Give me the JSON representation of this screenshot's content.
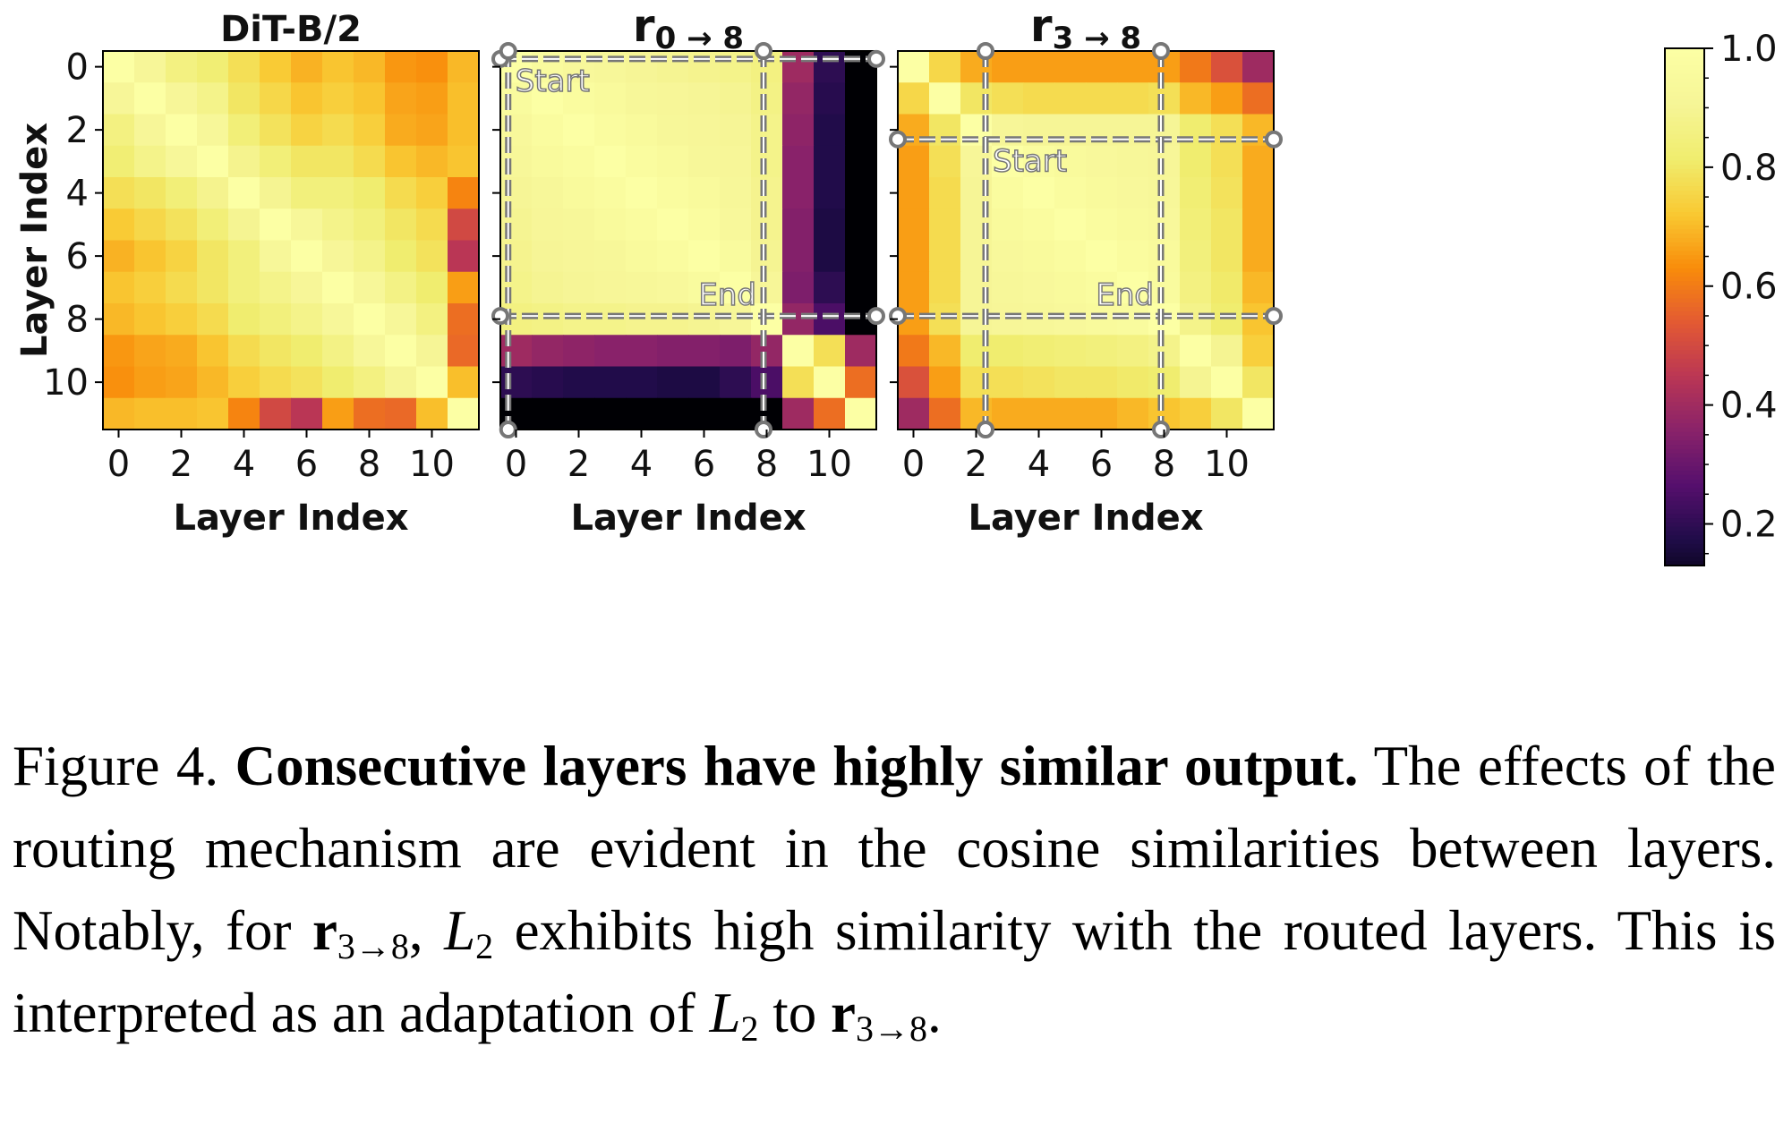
{
  "chart_data": [
    {
      "type": "heatmap",
      "title": "DiT-B/2",
      "title_main": "DiT-B/2",
      "title_sub": "",
      "xlabel": "Layer Index",
      "ylabel": "Layer Index",
      "x_ticks": [
        "0",
        "2",
        "4",
        "6",
        "8",
        "10"
      ],
      "y_ticks": [
        "0",
        "2",
        "4",
        "6",
        "8",
        "10"
      ],
      "size": 12,
      "route_from": null,
      "route_to": null,
      "start_label": "",
      "end_label": "",
      "values": [
        [
          1.0,
          0.92,
          0.86,
          0.83,
          0.78,
          0.73,
          0.69,
          0.72,
          0.7,
          0.65,
          0.64,
          0.7
        ],
        [
          0.92,
          1.0,
          0.92,
          0.88,
          0.8,
          0.76,
          0.72,
          0.74,
          0.72,
          0.67,
          0.66,
          0.71
        ],
        [
          0.86,
          0.92,
          1.0,
          0.93,
          0.84,
          0.79,
          0.75,
          0.77,
          0.74,
          0.68,
          0.67,
          0.71
        ],
        [
          0.83,
          0.88,
          0.93,
          1.0,
          0.89,
          0.84,
          0.8,
          0.8,
          0.77,
          0.72,
          0.7,
          0.72
        ],
        [
          0.78,
          0.8,
          0.84,
          0.89,
          1.0,
          0.9,
          0.85,
          0.85,
          0.82,
          0.77,
          0.74,
          0.62
        ],
        [
          0.73,
          0.76,
          0.79,
          0.84,
          0.9,
          1.0,
          0.93,
          0.88,
          0.85,
          0.8,
          0.77,
          0.5
        ],
        [
          0.69,
          0.72,
          0.75,
          0.8,
          0.85,
          0.93,
          1.0,
          0.92,
          0.88,
          0.82,
          0.79,
          0.45
        ],
        [
          0.72,
          0.74,
          0.77,
          0.8,
          0.85,
          0.88,
          0.92,
          1.0,
          0.93,
          0.87,
          0.82,
          0.66
        ],
        [
          0.7,
          0.72,
          0.74,
          0.77,
          0.82,
          0.85,
          0.88,
          0.93,
          1.0,
          0.93,
          0.86,
          0.58
        ],
        [
          0.65,
          0.67,
          0.68,
          0.72,
          0.77,
          0.8,
          0.82,
          0.87,
          0.93,
          1.0,
          0.91,
          0.57
        ],
        [
          0.64,
          0.66,
          0.67,
          0.7,
          0.74,
          0.77,
          0.79,
          0.82,
          0.86,
          0.91,
          1.0,
          0.71
        ],
        [
          0.7,
          0.71,
          0.71,
          0.72,
          0.62,
          0.5,
          0.45,
          0.66,
          0.58,
          0.57,
          0.71,
          1.0
        ]
      ]
    },
    {
      "type": "heatmap",
      "title": "r0→8",
      "title_main": "r",
      "title_sub": "0 → 8",
      "xlabel": "Layer Index",
      "ylabel": "",
      "x_ticks": [
        "0",
        "2",
        "4",
        "6",
        "8",
        "10"
      ],
      "y_ticks": [
        "",
        "",
        "",
        "",
        "",
        ""
      ],
      "size": 12,
      "route_from": 0,
      "route_to": 8,
      "start_label": "Start",
      "end_label": "End",
      "values": [
        [
          1.0,
          0.96,
          0.94,
          0.93,
          0.91,
          0.9,
          0.89,
          0.88,
          0.86,
          0.4,
          0.2,
          0.05
        ],
        [
          0.96,
          1.0,
          0.97,
          0.95,
          0.93,
          0.92,
          0.91,
          0.9,
          0.87,
          0.38,
          0.19,
          0.05
        ],
        [
          0.94,
          0.97,
          1.0,
          0.97,
          0.95,
          0.93,
          0.92,
          0.91,
          0.88,
          0.37,
          0.18,
          0.05
        ],
        [
          0.93,
          0.95,
          0.97,
          1.0,
          0.97,
          0.95,
          0.93,
          0.92,
          0.88,
          0.36,
          0.18,
          0.05
        ],
        [
          0.91,
          0.93,
          0.95,
          0.97,
          1.0,
          0.97,
          0.95,
          0.93,
          0.89,
          0.36,
          0.18,
          0.05
        ],
        [
          0.9,
          0.92,
          0.93,
          0.95,
          0.97,
          1.0,
          0.97,
          0.94,
          0.89,
          0.35,
          0.17,
          0.05
        ],
        [
          0.89,
          0.91,
          0.92,
          0.93,
          0.95,
          0.97,
          1.0,
          0.96,
          0.9,
          0.35,
          0.17,
          0.05
        ],
        [
          0.88,
          0.9,
          0.91,
          0.92,
          0.93,
          0.94,
          0.96,
          1.0,
          0.92,
          0.34,
          0.2,
          0.05
        ],
        [
          0.86,
          0.87,
          0.88,
          0.88,
          0.89,
          0.89,
          0.9,
          0.92,
          1.0,
          0.38,
          0.25,
          0.08
        ],
        [
          0.4,
          0.38,
          0.37,
          0.36,
          0.36,
          0.35,
          0.35,
          0.34,
          0.38,
          1.0,
          0.78,
          0.4
        ],
        [
          0.2,
          0.19,
          0.18,
          0.18,
          0.18,
          0.17,
          0.17,
          0.2,
          0.25,
          0.78,
          1.0,
          0.58
        ],
        [
          0.05,
          0.05,
          0.05,
          0.05,
          0.05,
          0.05,
          0.05,
          0.05,
          0.08,
          0.4,
          0.58,
          1.0
        ]
      ]
    },
    {
      "type": "heatmap",
      "title": "r3→8",
      "title_main": "r",
      "title_sub": "3 → 8",
      "xlabel": "Layer Index",
      "ylabel": "",
      "x_ticks": [
        "0",
        "2",
        "4",
        "6",
        "8",
        "10"
      ],
      "y_ticks": [
        "",
        "",
        "",
        "",
        "",
        ""
      ],
      "size": 12,
      "route_from": 3,
      "route_to": 8,
      "start_label": "Start",
      "end_label": "End",
      "values": [
        [
          1.0,
          0.76,
          0.68,
          0.66,
          0.66,
          0.66,
          0.66,
          0.66,
          0.66,
          0.6,
          0.52,
          0.4
        ],
        [
          0.76,
          1.0,
          0.8,
          0.78,
          0.77,
          0.77,
          0.77,
          0.77,
          0.78,
          0.7,
          0.66,
          0.58
        ],
        [
          0.68,
          0.8,
          1.0,
          0.92,
          0.91,
          0.91,
          0.91,
          0.91,
          0.91,
          0.82,
          0.78,
          0.7
        ],
        [
          0.66,
          0.78,
          0.92,
          1.0,
          0.97,
          0.95,
          0.94,
          0.93,
          0.92,
          0.82,
          0.78,
          0.68
        ],
        [
          0.66,
          0.77,
          0.91,
          0.97,
          1.0,
          0.97,
          0.95,
          0.94,
          0.93,
          0.83,
          0.79,
          0.68
        ],
        [
          0.66,
          0.77,
          0.91,
          0.95,
          0.97,
          1.0,
          0.97,
          0.95,
          0.94,
          0.84,
          0.8,
          0.68
        ],
        [
          0.66,
          0.77,
          0.91,
          0.94,
          0.95,
          0.97,
          1.0,
          0.97,
          0.95,
          0.85,
          0.8,
          0.68
        ],
        [
          0.66,
          0.77,
          0.91,
          0.93,
          0.94,
          0.95,
          0.97,
          1.0,
          0.96,
          0.86,
          0.81,
          0.7
        ],
        [
          0.66,
          0.78,
          0.91,
          0.92,
          0.93,
          0.94,
          0.95,
          0.96,
          1.0,
          0.88,
          0.82,
          0.72
        ],
        [
          0.6,
          0.7,
          0.82,
          0.82,
          0.83,
          0.84,
          0.85,
          0.86,
          0.88,
          1.0,
          0.9,
          0.74
        ],
        [
          0.52,
          0.66,
          0.78,
          0.78,
          0.79,
          0.8,
          0.8,
          0.81,
          0.82,
          0.9,
          1.0,
          0.8
        ],
        [
          0.4,
          0.58,
          0.7,
          0.68,
          0.68,
          0.68,
          0.68,
          0.7,
          0.72,
          0.74,
          0.8,
          1.0
        ]
      ]
    }
  ],
  "colorbar": {
    "colormap": "inferno",
    "vmin": 0.13,
    "vmax": 1.0,
    "ticks": [
      1.0,
      0.8,
      0.6,
      0.4,
      0.2
    ],
    "tick_labels": [
      "1.0",
      "0.8",
      "0.6",
      "0.4",
      "0.2"
    ]
  },
  "caption": {
    "label": "Figure 4.",
    "bold_title": "Consecutive layers have highly similar output.",
    "part1": "The effects of the routing mechanism are evident in the cosine similarities between layers. Notably, for ",
    "route_symbol": "r",
    "route_sub": "3→8",
    "part2": ", ",
    "layer_symbol": "L",
    "layer_sub": "2",
    "part3": " exhibits high similarity with the routed layers. This is interpreted as an adaptation of ",
    "part4": " to ",
    "part5": "."
  }
}
